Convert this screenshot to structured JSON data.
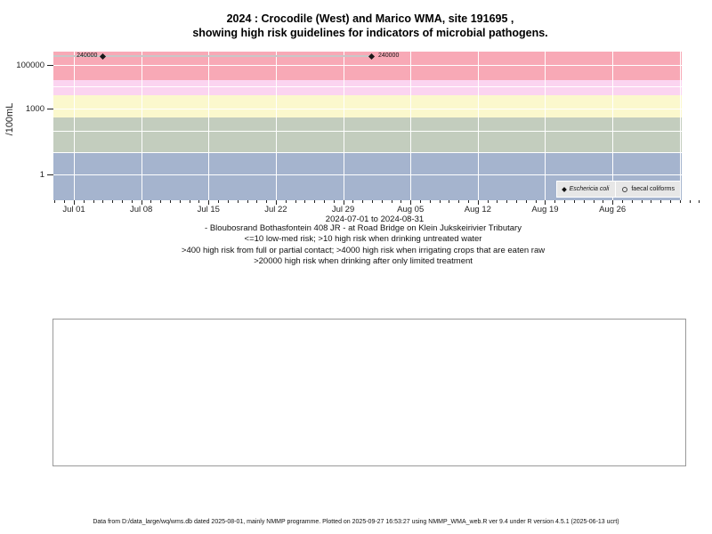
{
  "title": {
    "line1": "2024 : Crocodile (West) and Marico WMA, site 191695 ,",
    "line2": "showing high risk guidelines for indicators of microbial pathogens."
  },
  "chart_data": {
    "type": "scatter",
    "title": "2024 : Crocodile (West) and Marico WMA, site 191695 , showing high risk guidelines for indicators of microbial pathogens.",
    "ylabel": "/100mL",
    "y_scale": "log",
    "y_axis_unit": "/100mL",
    "ylim": [
      0.07,
      400000
    ],
    "y_ticks": [
      {
        "value": 100000,
        "label": "100000"
      },
      {
        "value": 1000,
        "label": "1000"
      },
      {
        "value": 1,
        "label": "1"
      }
    ],
    "y_gridline_values": [
      1,
      10,
      100,
      1000,
      10000,
      100000
    ],
    "x_axis_note": "2024-07-01 to 2024-08-31",
    "x_range": [
      "2024-07-01",
      "2024-08-31"
    ],
    "x_ticks": [
      {
        "label": "Jul 01",
        "day": 0
      },
      {
        "label": "Jul 08",
        "day": 7
      },
      {
        "label": "Jul 15",
        "day": 14
      },
      {
        "label": "Jul 22",
        "day": 21
      },
      {
        "label": "Jul 29",
        "day": 28
      },
      {
        "label": "Aug 05",
        "day": 35
      },
      {
        "label": "Aug 12",
        "day": 42
      },
      {
        "label": "Aug 19",
        "day": 49
      },
      {
        "label": "Aug 26",
        "day": 56
      }
    ],
    "x_gridline_days": [
      0,
      7,
      14,
      21,
      28,
      35,
      42,
      49,
      56,
      63
    ],
    "x_minor_tick_days": {
      "from": -2,
      "to": 65
    },
    "grid": "white-on-colored-bands",
    "risk_bands": [
      {
        "name": "above-20000-drinking-limited-treatment",
        "from": 20000,
        "to": 1000000,
        "color": "#f8a9b6"
      },
      {
        "name": "4000-20000-irrigating-crops-eaten-raw",
        "from": 4000,
        "to": 20000,
        "color": "#fbd4f0"
      },
      {
        "name": "400-4000-full-or-partial-contact",
        "from": 400,
        "to": 4000,
        "color": "#fbf8cd"
      },
      {
        "name": "10-400-drinking-untreated-water",
        "from": 10,
        "to": 400,
        "color": "#c3cdbe"
      },
      {
        "name": "below-10-low-med-risk",
        "from": 0.07,
        "to": 10,
        "color": "#a5b4ce"
      }
    ],
    "series": [
      {
        "name": "Eschericia coli",
        "marker": "filled-diamond",
        "color": "#1a1a1a",
        "points": [
          {
            "date": "2024-07-04",
            "day": 3,
            "value": 240000,
            "label": "240000",
            "label_side": "left"
          },
          {
            "date": "2024-08-01",
            "day": 31,
            "value": 240000,
            "label": "240000",
            "label_side": "right"
          }
        ]
      },
      {
        "name": "faecal coliforms",
        "marker": "open-circle",
        "color": "#444444",
        "points": []
      }
    ],
    "connector_line": {
      "value": 240000,
      "from_day": -2.1,
      "to_day": 31,
      "color": "#c8c8c8"
    },
    "legend": {
      "position": "bottom-right",
      "entries": [
        {
          "label": "Eschericia coli",
          "marker": "filled-diamond",
          "italic": true
        },
        {
          "label": "faecal coliforms",
          "marker": "open-circle",
          "italic": false
        }
      ]
    }
  },
  "caption": {
    "lines": [
      "- Bloubosrand Bothasfontein 408 JR - at Road Bridge on Klein Jukskeirivier Tributary",
      "<=10 low-med risk; >10 high risk when drinking untreated water",
      ">400 high risk from full or partial contact; >4000 high risk when irrigating crops that are eaten raw",
      ">20000 high risk when drinking after only limited treatment"
    ]
  },
  "footer": {
    "text": "Data from D:/data_large/wq/wms.db dated 2025-08-01, mainly NMMP programme. Plotted on 2025-09-27 16:53:27 using NMMP_WMA_web.R ver 9.4 under R version 4.5.1 (2025-06-13 ucrt)"
  },
  "colors": {
    "band_pink": "#f8a9b6",
    "band_light_pink": "#fbd4f0",
    "band_yellow": "#fbf8cd",
    "band_green": "#c3cdbe",
    "band_blue": "#a5b4ce",
    "gridline": "#ffffff",
    "marker": "#1a1a1a",
    "connector": "#c8c8c8",
    "legend_bg": "#e7e7e7",
    "panel_border": "#999999"
  }
}
